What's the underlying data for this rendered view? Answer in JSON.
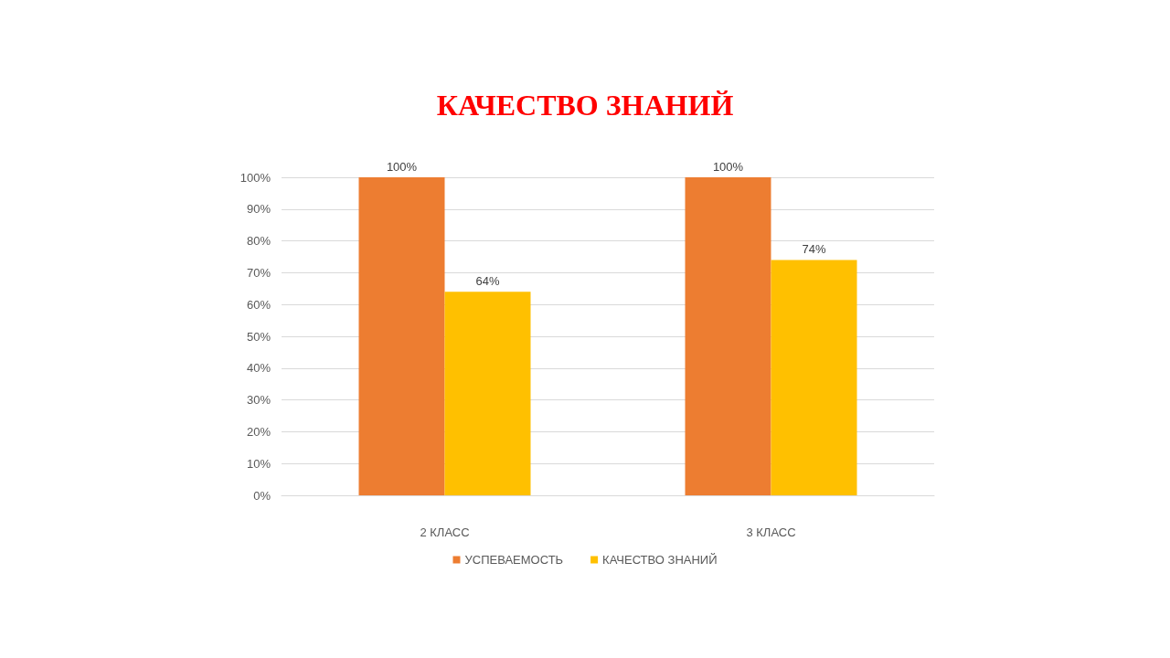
{
  "chart_data": {
    "type": "bar",
    "title": "КАЧЕСТВО ЗНАНИЙ",
    "categories": [
      "2 КЛАСС",
      "3 КЛАСС"
    ],
    "series": [
      {
        "name": "УСПЕВАЕМОСТЬ",
        "color": "#ed7d31",
        "values": [
          100,
          100
        ],
        "value_labels": [
          "100%",
          "100%"
        ]
      },
      {
        "name": "КАЧЕСТВО ЗНАНИЙ",
        "color": "#ffc000",
        "values": [
          64,
          74
        ],
        "value_labels": [
          "64%",
          "74%"
        ]
      }
    ],
    "ylim": [
      0,
      100
    ],
    "yticks": [
      {
        "value": 0,
        "label": "0%"
      },
      {
        "value": 10,
        "label": "10%"
      },
      {
        "value": 20,
        "label": "20%"
      },
      {
        "value": 30,
        "label": "30%"
      },
      {
        "value": 40,
        "label": "40%"
      },
      {
        "value": 50,
        "label": "50%"
      },
      {
        "value": 60,
        "label": "60%"
      },
      {
        "value": 70,
        "label": "70%"
      },
      {
        "value": 80,
        "label": "80%"
      },
      {
        "value": 90,
        "label": "90%"
      },
      {
        "value": 100,
        "label": "100%"
      }
    ],
    "grid": "y",
    "legend": "bottom"
  }
}
